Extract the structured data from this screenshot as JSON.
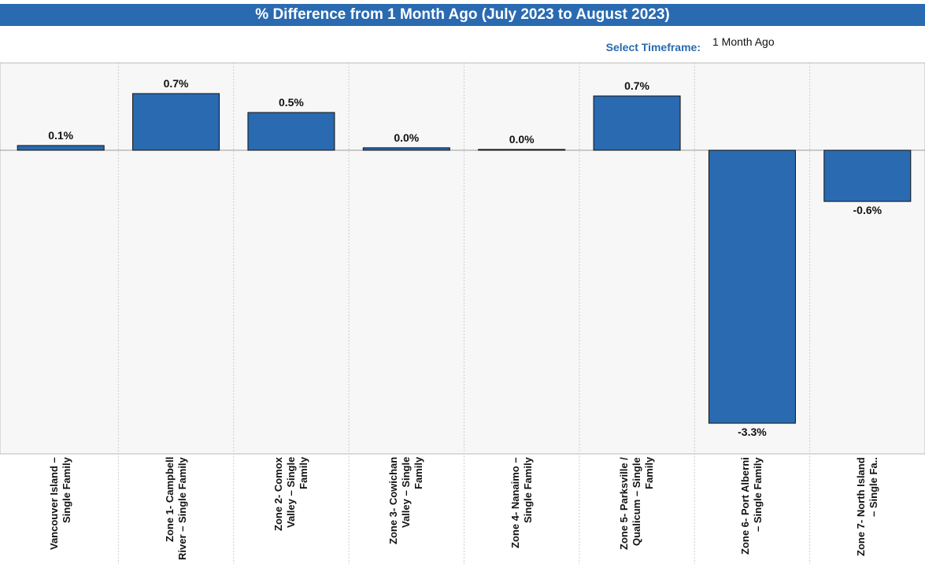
{
  "chart_data": {
    "type": "bar",
    "title": "% Difference from 1 Month Ago (July 2023 to August 2023)",
    "filter_label": "Select Timeframe:",
    "filter_value": "1 Month Ago",
    "categories": [
      "Vancouver Island – Single Family",
      "Zone 1- Campbell River – Single Family",
      "Zone 2- Comox Valley – Single Family",
      "Zone 3- Cowichan Valley – Single Family",
      "Zone 4- Nanaimo – Single Family",
      "Zone 5- Parksville / Qualicum – Single Family",
      "Zone 6- Port Alberni – Single Family",
      "Zone 7- North Island – Single Fa.."
    ],
    "values": [
      0.057,
      0.686,
      0.457,
      0.03,
      0.01,
      0.657,
      -3.305,
      -0.62
    ],
    "value_labels": [
      "0.1%",
      "0.7%",
      "0.5%",
      "0.0%",
      "0.0%",
      "0.7%",
      "-3.3%",
      "-0.6%"
    ],
    "color": "#2a6ab0",
    "ylim": [
      -3.676,
      1.057
    ]
  }
}
